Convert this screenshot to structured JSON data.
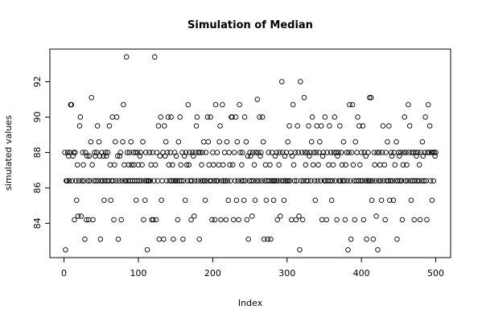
{
  "chart_data": {
    "type": "scatter",
    "title": "Simulation of Median",
    "x_label": "Index",
    "y_label": "simulated values",
    "color": "#000000",
    "grid": false,
    "xlim": [
      -19,
      520
    ],
    "xticks": [
      0,
      100,
      200,
      300,
      400,
      500
    ],
    "ylim": [
      82.06,
      93.84
    ],
    "yticks": [
      84,
      86,
      88,
      90,
      92
    ],
    "x": [
      1,
      2,
      3,
      4,
      5,
      6,
      7,
      8,
      9,
      10,
      11,
      12,
      13,
      14,
      15,
      16,
      17,
      18,
      19,
      20,
      21,
      22,
      23,
      24,
      25,
      26,
      27,
      28,
      29,
      30,
      31,
      32,
      33,
      34,
      35,
      36,
      37,
      38,
      39,
      40,
      41,
      42,
      43,
      44,
      45,
      46,
      47,
      48,
      49,
      50,
      51,
      52,
      53,
      54,
      55,
      56,
      57,
      58,
      59,
      60,
      61,
      62,
      63,
      64,
      65,
      66,
      67,
      68,
      69,
      70,
      71,
      72,
      73,
      74,
      75,
      76,
      77,
      78,
      79,
      80,
      81,
      82,
      83,
      84,
      85,
      86,
      87,
      88,
      89,
      90,
      91,
      92,
      93,
      94,
      95,
      96,
      97,
      98,
      99,
      100,
      101,
      102,
      103,
      104,
      105,
      106,
      107,
      108,
      109,
      110,
      111,
      112,
      113,
      114,
      115,
      116,
      117,
      118,
      119,
      120,
      121,
      122,
      123,
      124,
      125,
      126,
      127,
      128,
      129,
      130,
      131,
      132,
      133,
      134,
      135,
      136,
      137,
      138,
      139,
      140,
      141,
      142,
      143,
      144,
      145,
      146,
      147,
      148,
      149,
      150,
      151,
      152,
      153,
      154,
      155,
      156,
      157,
      158,
      159,
      160,
      161,
      162,
      163,
      164,
      165,
      166,
      167,
      168,
      169,
      170,
      171,
      172,
      173,
      174,
      175,
      176,
      177,
      178,
      179,
      180,
      181,
      182,
      183,
      184,
      185,
      186,
      187,
      188,
      189,
      190,
      191,
      192,
      193,
      194,
      195,
      196,
      197,
      198,
      199,
      200,
      201,
      202,
      203,
      204,
      205,
      206,
      207,
      208,
      209,
      210,
      211,
      212,
      213,
      214,
      215,
      216,
      217,
      218,
      219,
      220,
      221,
      222,
      223,
      224,
      225,
      226,
      227,
      228,
      229,
      230,
      231,
      232,
      233,
      234,
      235,
      236,
      237,
      238,
      239,
      240,
      241,
      242,
      243,
      244,
      245,
      246,
      247,
      248,
      249,
      250,
      251,
      252,
      253,
      254,
      255,
      256,
      257,
      258,
      259,
      260,
      261,
      262,
      263,
      264,
      265,
      266,
      267,
      268,
      269,
      270,
      271,
      272,
      273,
      274,
      275,
      276,
      277,
      278,
      279,
      280,
      281,
      282,
      283,
      284,
      285,
      286,
      287,
      288,
      289,
      290,
      291,
      292,
      293,
      294,
      295,
      296,
      297,
      298,
      299,
      300,
      301,
      302,
      303,
      304,
      305,
      306,
      307,
      308,
      309,
      310,
      311,
      312,
      313,
      314,
      315,
      316,
      317,
      318,
      319,
      320,
      321,
      322,
      323,
      324,
      325,
      326,
      327,
      328,
      329,
      330,
      331,
      332,
      333,
      334,
      335,
      336,
      337,
      338,
      339,
      340,
      341,
      342,
      343,
      344,
      345,
      346,
      347,
      348,
      349,
      350,
      351,
      352,
      353,
      354,
      355,
      356,
      357,
      358,
      359,
      360,
      361,
      362,
      363,
      364,
      365,
      366,
      367,
      368,
      369,
      370,
      371,
      372,
      373,
      374,
      375,
      376,
      377,
      378,
      379,
      380,
      381,
      382,
      383,
      384,
      385,
      386,
      387,
      388,
      389,
      390,
      391,
      392,
      393,
      394,
      395,
      396,
      397,
      398,
      399,
      400,
      401,
      402,
      403,
      404,
      405,
      406,
      407,
      408,
      409,
      410,
      411,
      412,
      413,
      414,
      415,
      416,
      417,
      418,
      419,
      420,
      421,
      422,
      423,
      424,
      425,
      426,
      427,
      428,
      429,
      430,
      431,
      432,
      433,
      434,
      435,
      436,
      437,
      438,
      439,
      440,
      441,
      442,
      443,
      444,
      445,
      446,
      447,
      448,
      449,
      450,
      451,
      452,
      453,
      454,
      455,
      456,
      457,
      458,
      459,
      460,
      461,
      462,
      463,
      464,
      465,
      466,
      467,
      468,
      469,
      470,
      471,
      472,
      473,
      474,
      475,
      476,
      477,
      478,
      479,
      480,
      481,
      482,
      483,
      484,
      485,
      486,
      487,
      488,
      489,
      490,
      491,
      492,
      493,
      494,
      495,
      496,
      497,
      498,
      499,
      500
    ],
    "values": [
      88.0,
      82.5,
      86.4,
      86.4,
      88.0,
      87.8,
      86.4,
      88.0,
      90.7,
      90.7,
      86.4,
      87.8,
      88.0,
      84.2,
      88.0,
      86.4,
      85.3,
      87.3,
      84.4,
      86.4,
      89.5,
      90.0,
      84.4,
      86.4,
      88.0,
      87.3,
      86.4,
      83.1,
      88.0,
      84.2,
      87.8,
      86.4,
      84.2,
      87.8,
      86.4,
      88.6,
      91.1,
      87.3,
      84.2,
      86.4,
      88.0,
      87.8,
      86.4,
      88.0,
      89.5,
      86.4,
      88.6,
      87.8,
      83.1,
      86.4,
      88.0,
      86.4,
      87.8,
      85.3,
      86.4,
      88.0,
      87.8,
      86.4,
      88.0,
      86.4,
      89.5,
      87.3,
      85.3,
      86.4,
      90.0,
      86.4,
      84.2,
      87.3,
      88.6,
      86.4,
      90.0,
      87.8,
      83.1,
      86.4,
      87.8,
      88.0,
      84.2,
      86.4,
      88.6,
      90.7,
      87.3,
      86.4,
      86.4,
      93.4,
      88.0,
      86.4,
      87.3,
      88.0,
      86.4,
      88.6,
      87.3,
      86.4,
      88.0,
      87.3,
      86.4,
      88.0,
      85.3,
      86.4,
      88.0,
      87.3,
      86.4,
      87.8,
      88.0,
      86.4,
      87.3,
      88.6,
      84.2,
      86.4,
      85.3,
      88.0,
      86.4,
      82.5,
      86.4,
      86.4,
      88.0,
      86.4,
      87.3,
      84.2,
      88.0,
      84.2,
      86.4,
      93.4,
      87.3,
      84.2,
      88.0,
      86.4,
      89.5,
      83.1,
      87.8,
      90.0,
      85.3,
      86.4,
      88.0,
      83.1,
      89.5,
      87.8,
      88.6,
      86.4,
      88.0,
      90.0,
      87.3,
      86.4,
      88.0,
      90.0,
      86.4,
      87.3,
      83.1,
      86.4,
      88.0,
      86.4,
      87.8,
      86.4,
      84.2,
      88.6,
      86.4,
      90.0,
      87.3,
      86.4,
      88.0,
      83.1,
      86.4,
      87.8,
      85.3,
      88.0,
      87.3,
      86.4,
      90.7,
      87.3,
      88.0,
      86.4,
      84.2,
      86.4,
      88.0,
      87.8,
      84.4,
      86.4,
      88.0,
      89.5,
      90.0,
      86.4,
      88.0,
      83.1,
      88.0,
      86.4,
      87.3,
      88.0,
      86.4,
      88.6,
      86.4,
      85.3,
      88.0,
      86.4,
      90.0,
      88.6,
      87.3,
      86.4,
      90.0,
      86.4,
      84.2,
      88.0,
      87.3,
      86.4,
      84.2,
      90.7,
      86.4,
      88.0,
      86.4,
      87.3,
      88.6,
      89.5,
      84.2,
      86.4,
      90.7,
      87.3,
      86.4,
      88.0,
      86.4,
      84.2,
      88.6,
      86.4,
      85.3,
      88.0,
      87.3,
      86.4,
      90.0,
      90.0,
      87.3,
      84.2,
      88.0,
      86.4,
      90.0,
      85.3,
      88.6,
      86.4,
      84.2,
      90.7,
      88.0,
      86.4,
      87.3,
      88.0,
      86.4,
      85.3,
      90.0,
      86.4,
      88.6,
      84.2,
      87.8,
      83.1,
      86.4,
      88.0,
      87.8,
      86.4,
      84.4,
      88.0,
      86.4,
      87.3,
      85.3,
      88.0,
      86.4,
      91.0,
      88.0,
      86.4,
      90.0,
      87.8,
      88.0,
      86.4,
      90.0,
      88.6,
      83.1,
      86.4,
      87.3,
      85.3,
      86.4,
      83.1,
      88.0,
      86.4,
      87.3,
      83.1,
      86.4,
      88.0,
      86.4,
      85.3,
      86.4,
      87.8,
      86.4,
      88.0,
      84.2,
      86.4,
      87.3,
      88.0,
      84.4,
      86.4,
      92.0,
      88.0,
      86.4,
      85.3,
      87.8,
      86.4,
      88.0,
      86.4,
      88.6,
      86.4,
      89.5,
      86.4,
      88.0,
      84.2,
      87.8,
      90.7,
      87.3,
      86.4,
      88.0,
      84.2,
      86.4,
      89.5,
      88.0,
      84.4,
      82.5,
      92.0,
      86.4,
      88.0,
      84.2,
      86.4,
      91.1,
      88.0,
      87.3,
      86.4,
      88.0,
      86.4,
      89.5,
      87.8,
      88.0,
      86.4,
      88.6,
      90.0,
      87.3,
      88.0,
      86.4,
      85.3,
      88.0,
      89.5,
      86.4,
      87.3,
      88.0,
      88.6,
      86.4,
      89.5,
      84.2,
      87.8,
      88.0,
      86.4,
      90.0,
      86.4,
      84.2,
      88.0,
      86.4,
      87.3,
      89.5,
      86.4,
      88.0,
      85.3,
      86.4,
      87.3,
      88.0,
      90.0,
      86.4,
      88.0,
      84.2,
      87.8,
      88.0,
      86.4,
      89.5,
      86.4,
      88.0,
      87.3,
      86.4,
      88.6,
      86.4,
      84.2,
      87.3,
      88.0,
      86.4,
      82.5,
      88.0,
      90.7,
      86.4,
      83.1,
      88.0,
      90.7,
      87.3,
      86.4,
      84.2,
      88.6,
      86.4,
      88.0,
      90.0,
      86.4,
      89.5,
      87.3,
      86.4,
      88.0,
      86.4,
      89.5,
      84.2,
      88.0,
      86.4,
      87.8,
      83.1,
      86.4,
      88.0,
      86.4,
      91.1,
      86.4,
      91.1,
      85.3,
      86.4,
      83.1,
      88.0,
      87.3,
      86.4,
      84.4,
      88.0,
      82.5,
      86.4,
      88.0,
      87.3,
      86.4,
      85.3,
      88.0,
      89.5,
      86.4,
      87.3,
      84.2,
      88.0,
      86.4,
      88.6,
      86.4,
      89.5,
      85.3,
      86.4,
      88.0,
      87.8,
      86.4,
      85.3,
      88.0,
      87.3,
      86.4,
      88.6,
      83.1,
      86.4,
      88.0,
      87.8,
      86.4,
      88.0,
      86.4,
      84.2,
      87.3,
      88.0,
      90.0,
      86.4,
      88.0,
      87.3,
      86.4,
      90.7,
      88.0,
      89.5,
      86.4,
      85.3,
      88.0,
      86.4,
      88.0,
      84.2,
      86.4,
      88.0,
      87.8,
      86.4,
      88.0,
      86.4,
      87.3,
      84.2,
      88.0,
      86.4,
      88.6,
      87.8,
      86.4,
      88.0,
      90.0,
      86.4,
      84.2,
      88.0,
      90.7,
      88.0,
      89.5,
      86.4,
      88.0,
      85.3,
      88.0,
      86.4,
      88.0,
      87.8,
      88.0
    ]
  }
}
